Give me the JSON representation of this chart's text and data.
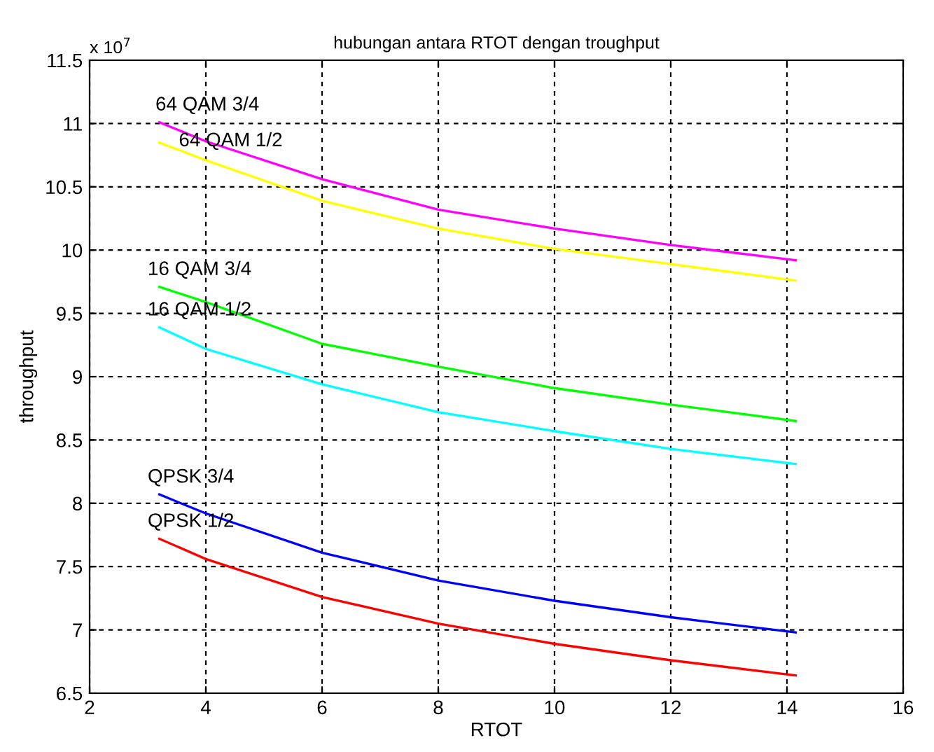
{
  "chart_data": {
    "type": "line",
    "title": "hubungan antara RTOT dengan troughput",
    "xlabel": "RTOT",
    "ylabel": "throughput",
    "annotations": [
      "x 10$^{7}$"
    ],
    "x": [
      3.2,
      4,
      6,
      8,
      10,
      12,
      14.15
    ],
    "series": [
      {
        "name": "64 QAM 3/4",
        "color": "#ff00ff",
        "values": [
          11.01,
          10.86,
          10.56,
          10.32,
          10.17,
          10.04,
          9.92
        ]
      },
      {
        "name": "64 QAM 1/2",
        "color": "#ffff00",
        "values": [
          10.85,
          10.71,
          10.39,
          10.17,
          10.01,
          9.89,
          9.76
        ]
      },
      {
        "name": "16 QAM 3/4",
        "color": "#00ff00",
        "values": [
          9.71,
          9.59,
          9.26,
          9.08,
          8.91,
          8.78,
          8.65
        ]
      },
      {
        "name": "16 QAM 1/2",
        "color": "#00ffff",
        "values": [
          9.39,
          9.22,
          8.94,
          8.72,
          8.57,
          8.43,
          8.31
        ]
      },
      {
        "name": "QPSK 3/4",
        "color": "#0000ff",
        "values": [
          8.07,
          7.92,
          7.61,
          7.39,
          7.23,
          7.1,
          6.98
        ]
      },
      {
        "name": "QPSK 1/2",
        "color": "#ff0000",
        "values": [
          7.72,
          7.56,
          7.26,
          7.05,
          6.89,
          6.76,
          6.64
        ]
      }
    ],
    "xlim": [
      2,
      16
    ],
    "xticks": [
      2,
      4,
      6,
      8,
      10,
      12,
      14,
      16
    ],
    "ylim": [
      6.5,
      11.5
    ],
    "yticks": [
      6.5,
      7,
      7.5,
      8,
      8.5,
      9,
      9.5,
      10,
      10.5,
      11,
      11.5
    ],
    "grid": true,
    "line_style": "solid",
    "marker": "none",
    "legend": false
  }
}
